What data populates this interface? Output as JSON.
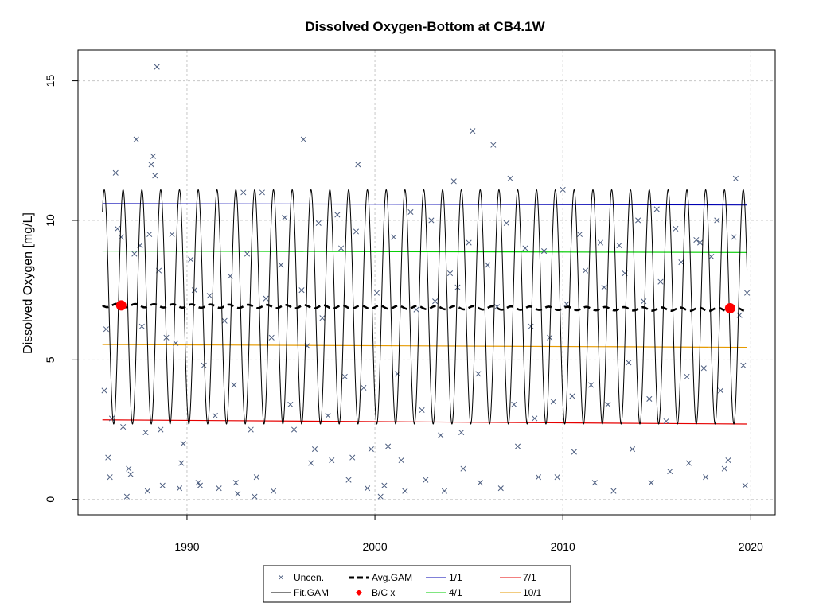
{
  "chart_data": {
    "type": "line",
    "title": "Dissolved Oxygen-Bottom at CB4.1W",
    "xlabel": "",
    "ylabel": "Dissolved Oxygen [mg/L]",
    "xlim": [
      1984.2,
      2021.3
    ],
    "ylim": [
      -0.55,
      16.1
    ],
    "x_ticks": [
      1990,
      2000,
      2010,
      2020
    ],
    "y_ticks": [
      0,
      5,
      10,
      15
    ],
    "grid": true,
    "legend_position": "bottom",
    "legend": [
      "Uncen.",
      "Fit.GAM",
      "Avg.GAM",
      "B/C x",
      "1/1",
      "4/1",
      "7/1",
      "10/1"
    ],
    "colors": {
      "uncen": "#4d5e80",
      "fit_gam": "#000000",
      "avg_gam": "#000000",
      "bc_x": "#ff0000",
      "d_1_1": "#0000b2",
      "d_4_1": "#00cc00",
      "d_7_1": "#e60000",
      "d_10_1": "#e69a00"
    },
    "series": [
      {
        "name": "1/1",
        "x": [
          1985.5,
          2019.8
        ],
        "y": [
          10.6,
          10.55
        ]
      },
      {
        "name": "4/1",
        "x": [
          1985.5,
          2019.8
        ],
        "y": [
          8.9,
          8.85
        ]
      },
      {
        "name": "Avg.GAM",
        "x": [
          1985.5,
          2019.8
        ],
        "y": [
          6.95,
          6.8
        ]
      },
      {
        "name": "10/1",
        "x": [
          1985.5,
          2019.8
        ],
        "y": [
          5.55,
          5.45
        ]
      },
      {
        "name": "7/1",
        "x": [
          1985.5,
          2019.8
        ],
        "y": [
          2.85,
          2.7
        ]
      },
      {
        "name": "Fit.GAM",
        "seasonal_range": [
          2.7,
          11.1
        ],
        "period_years": 1,
        "x_range": [
          1985.5,
          2019.8
        ]
      },
      {
        "name": "B/C x",
        "x": [
          1986.5,
          2018.9
        ],
        "y": [
          6.95,
          6.85
        ]
      }
    ],
    "uncen_points": [
      [
        1985.6,
        3.9
      ],
      [
        1985.7,
        6.1
      ],
      [
        1985.8,
        1.5
      ],
      [
        1985.9,
        0.8
      ],
      [
        1986.0,
        2.9
      ],
      [
        1986.2,
        11.7
      ],
      [
        1986.3,
        9.7
      ],
      [
        1986.5,
        9.4
      ],
      [
        1986.6,
        2.6
      ],
      [
        1986.8,
        0.1
      ],
      [
        1986.9,
        1.1
      ],
      [
        1987.0,
        0.9
      ],
      [
        1987.2,
        8.8
      ],
      [
        1987.3,
        12.9
      ],
      [
        1987.5,
        9.1
      ],
      [
        1987.6,
        6.2
      ],
      [
        1987.8,
        2.4
      ],
      [
        1987.9,
        0.3
      ],
      [
        1988.0,
        9.5
      ],
      [
        1988.1,
        12.0
      ],
      [
        1988.2,
        12.3
      ],
      [
        1988.3,
        11.6
      ],
      [
        1988.4,
        15.5
      ],
      [
        1988.5,
        8.2
      ],
      [
        1988.6,
        2.5
      ],
      [
        1988.7,
        0.5
      ],
      [
        1988.9,
        5.8
      ],
      [
        1989.2,
        9.5
      ],
      [
        1989.4,
        5.6
      ],
      [
        1989.6,
        0.4
      ],
      [
        1989.7,
        1.3
      ],
      [
        1989.8,
        2.0
      ],
      [
        1990.2,
        8.6
      ],
      [
        1990.4,
        7.5
      ],
      [
        1990.6,
        0.6
      ],
      [
        1990.7,
        0.5
      ],
      [
        1990.9,
        4.8
      ],
      [
        1991.2,
        7.3
      ],
      [
        1991.5,
        3.0
      ],
      [
        1991.7,
        0.4
      ],
      [
        1992.0,
        6.4
      ],
      [
        1992.3,
        8.0
      ],
      [
        1992.5,
        4.1
      ],
      [
        1992.6,
        0.6
      ],
      [
        1992.7,
        0.2
      ],
      [
        1993.0,
        11.0
      ],
      [
        1993.2,
        8.8
      ],
      [
        1993.4,
        2.5
      ],
      [
        1993.6,
        0.1
      ],
      [
        1993.7,
        0.8
      ],
      [
        1994.0,
        11.0
      ],
      [
        1994.2,
        7.2
      ],
      [
        1994.5,
        5.8
      ],
      [
        1994.6,
        0.3
      ],
      [
        1995.0,
        8.4
      ],
      [
        1995.2,
        10.1
      ],
      [
        1995.5,
        3.4
      ],
      [
        1995.7,
        2.5
      ],
      [
        1996.1,
        7.5
      ],
      [
        1996.2,
        12.9
      ],
      [
        1996.4,
        5.5
      ],
      [
        1996.6,
        1.3
      ],
      [
        1996.8,
        1.8
      ],
      [
        1997.0,
        9.9
      ],
      [
        1997.2,
        6.5
      ],
      [
        1997.5,
        3.0
      ],
      [
        1997.7,
        1.4
      ],
      [
        1998.0,
        10.2
      ],
      [
        1998.2,
        9.0
      ],
      [
        1998.4,
        4.4
      ],
      [
        1998.6,
        0.7
      ],
      [
        1998.8,
        1.5
      ],
      [
        1999.0,
        9.6
      ],
      [
        1999.1,
        12.0
      ],
      [
        1999.4,
        4.0
      ],
      [
        1999.6,
        0.4
      ],
      [
        1999.8,
        1.8
      ],
      [
        2000.1,
        7.4
      ],
      [
        2000.3,
        0.1
      ],
      [
        2000.5,
        0.5
      ],
      [
        2000.7,
        1.9
      ],
      [
        2001.0,
        9.4
      ],
      [
        2001.2,
        4.5
      ],
      [
        2001.4,
        1.4
      ],
      [
        2001.6,
        0.3
      ],
      [
        2001.9,
        10.3
      ],
      [
        2002.2,
        6.8
      ],
      [
        2002.5,
        3.2
      ],
      [
        2002.7,
        0.7
      ],
      [
        2003.0,
        10.0
      ],
      [
        2003.2,
        7.1
      ],
      [
        2003.5,
        2.3
      ],
      [
        2003.7,
        0.3
      ],
      [
        2004.0,
        8.1
      ],
      [
        2004.2,
        11.4
      ],
      [
        2004.4,
        7.6
      ],
      [
        2004.6,
        2.4
      ],
      [
        2004.7,
        1.1
      ],
      [
        2005.0,
        9.2
      ],
      [
        2005.2,
        13.2
      ],
      [
        2005.5,
        4.5
      ],
      [
        2005.6,
        0.6
      ],
      [
        2006.0,
        8.4
      ],
      [
        2006.3,
        12.7
      ],
      [
        2006.5,
        6.9
      ],
      [
        2006.7,
        0.4
      ],
      [
        2007.0,
        9.9
      ],
      [
        2007.2,
        11.5
      ],
      [
        2007.4,
        3.4
      ],
      [
        2007.6,
        1.9
      ],
      [
        2008.0,
        9.0
      ],
      [
        2008.3,
        6.2
      ],
      [
        2008.5,
        2.9
      ],
      [
        2008.7,
        0.8
      ],
      [
        2009.0,
        8.9
      ],
      [
        2009.3,
        5.8
      ],
      [
        2009.5,
        3.5
      ],
      [
        2009.7,
        0.8
      ],
      [
        2010.0,
        11.1
      ],
      [
        2010.2,
        7.0
      ],
      [
        2010.5,
        3.7
      ],
      [
        2010.6,
        1.7
      ],
      [
        2010.9,
        9.5
      ],
      [
        2011.2,
        8.2
      ],
      [
        2011.5,
        4.1
      ],
      [
        2011.7,
        0.6
      ],
      [
        2012.0,
        9.2
      ],
      [
        2012.2,
        7.6
      ],
      [
        2012.4,
        3.4
      ],
      [
        2012.7,
        0.3
      ],
      [
        2013.0,
        9.1
      ],
      [
        2013.3,
        8.1
      ],
      [
        2013.5,
        4.9
      ],
      [
        2013.7,
        1.8
      ],
      [
        2014.0,
        10.0
      ],
      [
        2014.3,
        7.1
      ],
      [
        2014.6,
        3.6
      ],
      [
        2014.7,
        0.6
      ],
      [
        2015.0,
        10.4
      ],
      [
        2015.2,
        7.8
      ],
      [
        2015.5,
        2.8
      ],
      [
        2015.7,
        1.0
      ],
      [
        2016.0,
        9.7
      ],
      [
        2016.3,
        8.5
      ],
      [
        2016.6,
        4.4
      ],
      [
        2016.7,
        1.3
      ],
      [
        2017.1,
        9.3
      ],
      [
        2017.3,
        9.2
      ],
      [
        2017.5,
        4.7
      ],
      [
        2017.6,
        0.8
      ],
      [
        2017.9,
        8.7
      ],
      [
        2018.2,
        10.0
      ],
      [
        2018.4,
        3.9
      ],
      [
        2018.6,
        1.1
      ],
      [
        2018.8,
        1.4
      ],
      [
        2019.1,
        9.4
      ],
      [
        2019.2,
        11.5
      ],
      [
        2019.4,
        6.6
      ],
      [
        2019.6,
        4.8
      ],
      [
        2019.7,
        0.5
      ],
      [
        2019.8,
        7.4
      ]
    ]
  }
}
